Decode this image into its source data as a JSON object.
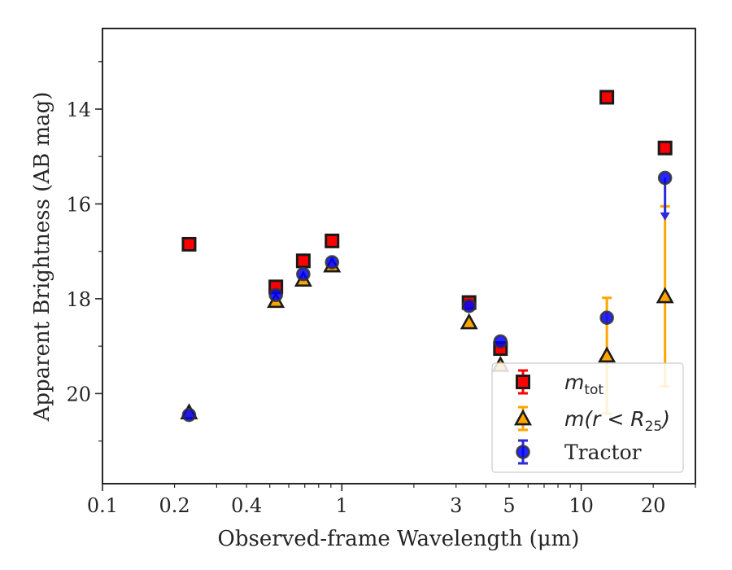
{
  "chart_data": {
    "type": "scatter",
    "xlabel": "Observed-frame Wavelength (μm)",
    "ylabel": "Apparent Brightness (AB mag)",
    "xscale": "log",
    "xlim": [
      0.1,
      30
    ],
    "ylim": [
      21.9,
      12.3
    ],
    "y_inverted": true,
    "grid": false,
    "legend_position": "lower-right",
    "xticks": [
      {
        "value": 0.1,
        "label": "0.1"
      },
      {
        "value": 0.2,
        "label": "0.2"
      },
      {
        "value": 0.4,
        "label": "0.4"
      },
      {
        "value": 1,
        "label": "1"
      },
      {
        "value": 3,
        "label": "3"
      },
      {
        "value": 5,
        "label": "5"
      },
      {
        "value": 10,
        "label": "10"
      },
      {
        "value": 20,
        "label": "20"
      }
    ],
    "yticks": [
      {
        "value": 14,
        "label": "14"
      },
      {
        "value": 16,
        "label": "16"
      },
      {
        "value": 18,
        "label": "18"
      },
      {
        "value": 20,
        "label": "20"
      }
    ],
    "series": [
      {
        "name": "m_tot",
        "marker": "square",
        "color": "#ff0000",
        "edge": "#1a1a1a",
        "points": [
          {
            "x": 0.23,
            "y": 16.85
          },
          {
            "x": 0.53,
            "y": 17.75
          },
          {
            "x": 0.69,
            "y": 17.2
          },
          {
            "x": 0.91,
            "y": 16.78
          },
          {
            "x": 3.4,
            "y": 18.08
          },
          {
            "x": 4.6,
            "y": 19.05
          },
          {
            "x": 12.8,
            "y": 13.75
          },
          {
            "x": 22.4,
            "y": 14.82
          }
        ]
      },
      {
        "name": "m(r<R25)",
        "marker": "triangle",
        "color": "#ffa500",
        "edge": "#1a1a1a",
        "points": [
          {
            "x": 0.23,
            "y": 20.4
          },
          {
            "x": 0.53,
            "y": 18.05
          },
          {
            "x": 0.69,
            "y": 17.6
          },
          {
            "x": 0.91,
            "y": 17.3
          },
          {
            "x": 3.4,
            "y": 18.5
          },
          {
            "x": 4.6,
            "y": 19.4
          },
          {
            "x": 12.8,
            "y": 19.2,
            "err_low": 17.98,
            "err_high": 20.42
          },
          {
            "x": 22.4,
            "y": 17.95,
            "err_low": 16.05,
            "err_high": 19.85
          }
        ]
      },
      {
        "name": "Tractor",
        "marker": "circle",
        "color": "#0000ff",
        "edge": "#333333",
        "points": [
          {
            "x": 0.23,
            "y": 20.45
          },
          {
            "x": 0.53,
            "y": 17.92
          },
          {
            "x": 0.69,
            "y": 17.48
          },
          {
            "x": 0.91,
            "y": 17.23
          },
          {
            "x": 3.4,
            "y": 18.15
          },
          {
            "x": 4.6,
            "y": 18.9
          },
          {
            "x": 12.8,
            "y": 18.4
          },
          {
            "x": 22.4,
            "y": 15.45,
            "upper_limit_to": 16.3
          }
        ]
      }
    ]
  },
  "legend": {
    "items": [
      {
        "base": "m",
        "sub": "tot",
        "rest": ""
      },
      {
        "base": "m(r < R",
        "sub": "25",
        "rest": ")"
      },
      {
        "base": "Tractor",
        "sub": "",
        "rest": ""
      }
    ]
  }
}
